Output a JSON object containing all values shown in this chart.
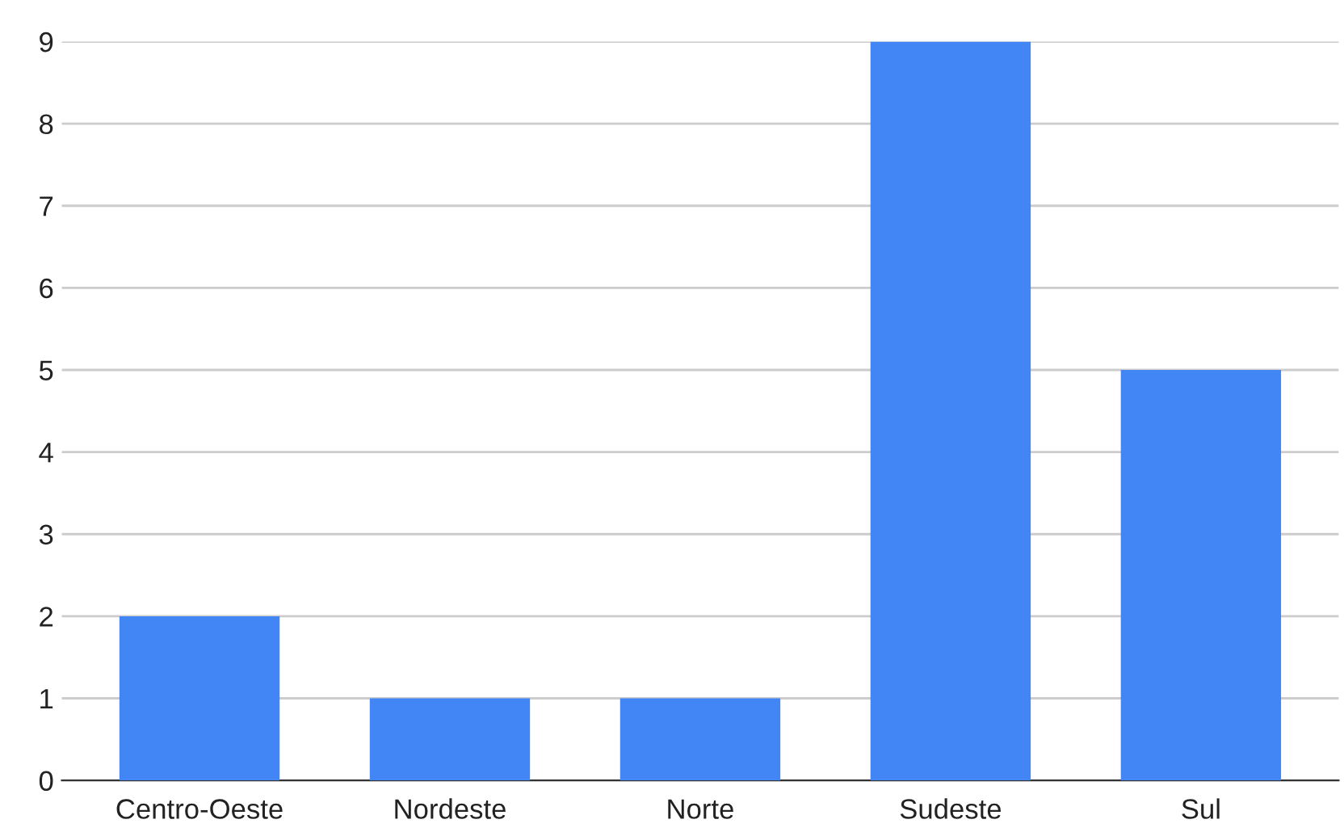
{
  "chart_data": {
    "type": "bar",
    "categories": [
      "Centro-Oeste",
      "Nordeste",
      "Norte",
      "Sudeste",
      "Sul"
    ],
    "values": [
      2,
      1,
      1,
      9,
      5
    ],
    "color": "#4285f4",
    "ylim": [
      0,
      9
    ],
    "yticks": [
      0,
      1,
      2,
      3,
      4,
      5,
      6,
      7,
      8,
      9
    ],
    "grid": "y",
    "legend": false
  }
}
